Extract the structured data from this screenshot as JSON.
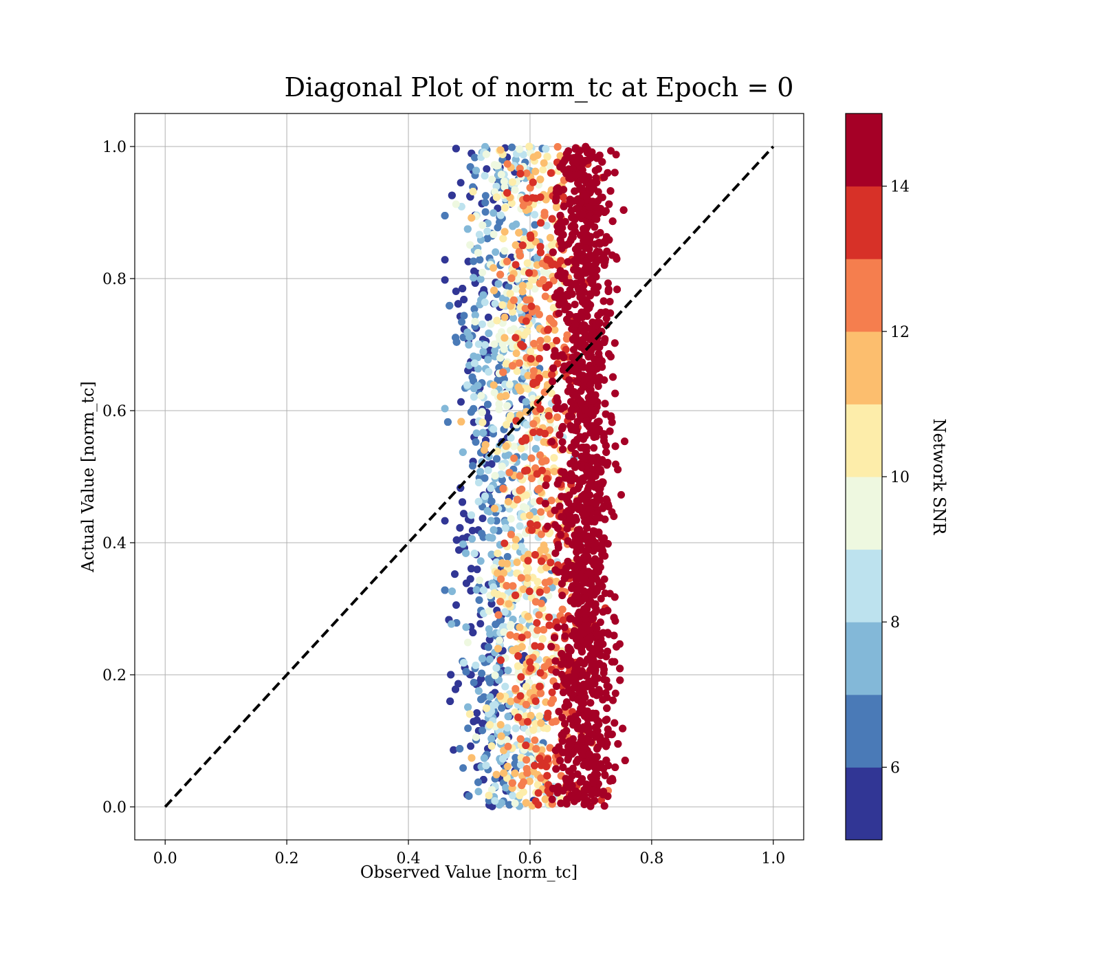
{
  "chart_data": {
    "type": "scatter",
    "title": "Diagonal Plot of norm_tc at Epoch = 0",
    "xlabel": "Observed Value [norm_tc]",
    "ylabel": "Actual Value [norm_tc]",
    "xlim": [
      -0.05,
      1.05
    ],
    "ylim": [
      -0.05,
      1.05
    ],
    "xticks": [
      "0.0",
      "0.2",
      "0.4",
      "0.6",
      "0.8",
      "1.0"
    ],
    "yticks": [
      "0.0",
      "0.2",
      "0.4",
      "0.6",
      "0.8",
      "1.0"
    ],
    "grid": true,
    "reference_line": {
      "style": "dashed",
      "color": "#000000",
      "x": [
        0.0,
        1.0
      ],
      "y": [
        0.0,
        1.0
      ]
    },
    "point_cloud": {
      "x_range": [
        0.46,
        0.77
      ],
      "y_range": [
        0.0,
        1.0
      ],
      "dense_core_x_range": [
        0.64,
        0.74
      ],
      "high_snr_x_center": 0.69,
      "low_snr_x_center": 0.52,
      "point_count_approx": 6000
    },
    "colorbar": {
      "label": "Network SNR",
      "range": [
        5,
        15
      ],
      "ticks": [
        "6",
        "8",
        "10",
        "12",
        "14"
      ],
      "bands": [
        {
          "from": 5,
          "to": 6,
          "color": "#313695"
        },
        {
          "from": 6,
          "to": 7,
          "color": "#4a7ab7"
        },
        {
          "from": 7,
          "to": 8,
          "color": "#83b8d8"
        },
        {
          "from": 8,
          "to": 9,
          "color": "#bde2ee"
        },
        {
          "from": 9,
          "to": 10,
          "color": "#eef8e0"
        },
        {
          "from": 10,
          "to": 11,
          "color": "#fdedaa"
        },
        {
          "from": 11,
          "to": 12,
          "color": "#fcbe6e"
        },
        {
          "from": 12,
          "to": 13,
          "color": "#f57e4e"
        },
        {
          "from": 13,
          "to": 14,
          "color": "#d73128"
        },
        {
          "from": 14,
          "to": 15,
          "color": "#a50026"
        }
      ]
    }
  }
}
